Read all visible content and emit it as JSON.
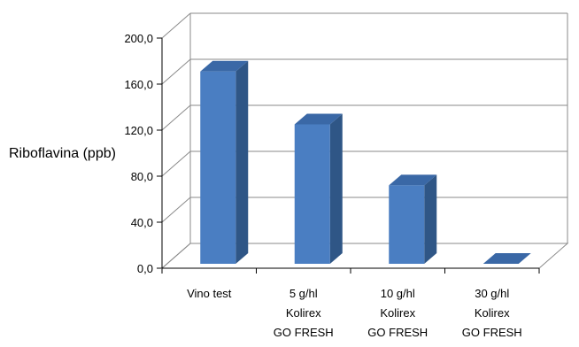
{
  "chart_data": {
    "type": "bar",
    "style": "3d-column",
    "categories": [
      [
        "Vino test"
      ],
      [
        "5 g/hl",
        "Kolirex",
        "GO FRESH"
      ],
      [
        "10 g/hl",
        "Kolirex",
        "GO FRESH"
      ],
      [
        "30 g/hl",
        "Kolirex",
        "GO FRESH"
      ]
    ],
    "values": [
      171.0,
      125.0,
      72.0,
      0.0
    ],
    "ylabel": "Riboflavina (ppb)",
    "xlabel": "",
    "title": "",
    "ylim": [
      0,
      200
    ],
    "yticks": [
      "0,0",
      "40,0",
      "80,0",
      "120,0",
      "160,0",
      "200,0"
    ],
    "grid": true,
    "legend": "none",
    "colors": {
      "bar_front": "#4a7ec2",
      "bar_side": "#2f5686",
      "bar_top": "#3a68a6",
      "grid": "#8a8a8a"
    }
  }
}
